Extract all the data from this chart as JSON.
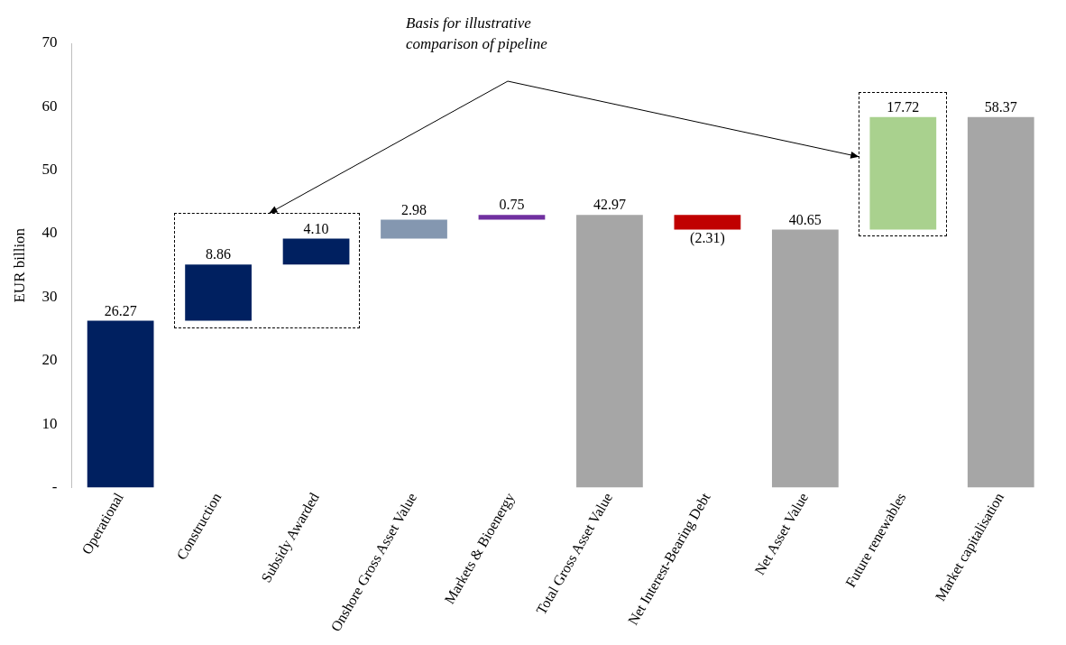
{
  "chart_data": {
    "type": "bar",
    "categories": [
      "Operational",
      "Construction",
      "Subsidy Awarded",
      "Onshore Gross Asset Value",
      "Markets & Bioenergy",
      "Total Gross Asset Value",
      "Net Interest-Bearing Debt",
      "Net Asset Value",
      "Future renewables",
      "Market capitalisation"
    ],
    "values": [
      26.27,
      8.86,
      4.1,
      2.98,
      0.75,
      42.97,
      -2.31,
      40.65,
      17.72,
      58.37
    ],
    "base": [
      0,
      26.27,
      35.13,
      39.23,
      42.21,
      0,
      42.97,
      0,
      40.65,
      0
    ],
    "colors": [
      "#002060",
      "#002060",
      "#002060",
      "#8497b0",
      "#7030a0",
      "#a6a6a6",
      "#c00000",
      "#a6a6a6",
      "#a9d18e",
      "#a6a6a6"
    ],
    "value_labels": [
      "26.27",
      "8.86",
      "4.10",
      "2.98",
      "0.75",
      "42.97",
      "(2.31)",
      "40.65",
      "17.72",
      "58.37"
    ],
    "ylabel": "EUR billion",
    "ylim": [
      0,
      70
    ],
    "yticks": [
      {
        "value": 0,
        "label": "-"
      },
      10,
      20,
      30,
      40,
      50,
      60,
      70
    ],
    "grid": false,
    "legend": false,
    "annotations": [
      "Basis for illustrative comparison of pipeline"
    ]
  }
}
